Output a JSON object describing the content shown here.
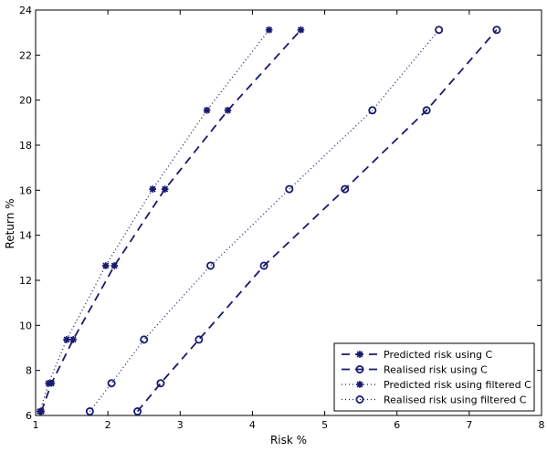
{
  "chart_data": {
    "type": "line",
    "title": "",
    "xlabel": "Risk %",
    "ylabel": "Return %",
    "xlim": [
      1,
      8
    ],
    "ylim": [
      6,
      24
    ],
    "xticks": [
      "1",
      "2",
      "3",
      "4",
      "5",
      "6",
      "7",
      "8"
    ],
    "yticks": [
      "6",
      "8",
      "10",
      "12",
      "14",
      "16",
      "18",
      "20",
      "22",
      "24"
    ],
    "legend_position": "bottom-right",
    "color": "#191970",
    "series": [
      {
        "name": "Predicted risk using C",
        "line_style": "dashed",
        "marker": "star",
        "x": [
          1.08,
          1.22,
          1.52,
          2.09,
          2.79,
          3.66,
          4.67
        ],
        "y": [
          6.18,
          7.43,
          9.37,
          12.65,
          16.05,
          19.55,
          23.12
        ]
      },
      {
        "name": "Realised risk using C",
        "line_style": "dashed",
        "marker": "circle",
        "x": [
          2.41,
          2.73,
          3.26,
          4.16,
          5.28,
          6.41,
          7.38
        ],
        "y": [
          6.18,
          7.43,
          9.37,
          12.65,
          16.05,
          19.55,
          23.12
        ]
      },
      {
        "name": "Predicted risk using filtered C",
        "line_style": "dotted",
        "marker": "star",
        "x": [
          1.06,
          1.18,
          1.43,
          1.97,
          2.62,
          3.37,
          4.23
        ],
        "y": [
          6.18,
          7.43,
          9.37,
          12.65,
          16.05,
          19.55,
          23.12
        ]
      },
      {
        "name": "Realised risk using filtered C",
        "line_style": "dotted",
        "marker": "circle",
        "x": [
          1.75,
          2.05,
          2.5,
          3.42,
          4.51,
          5.66,
          6.58
        ],
        "y": [
          6.18,
          7.43,
          9.37,
          12.65,
          16.05,
          19.55,
          23.12
        ]
      }
    ]
  }
}
